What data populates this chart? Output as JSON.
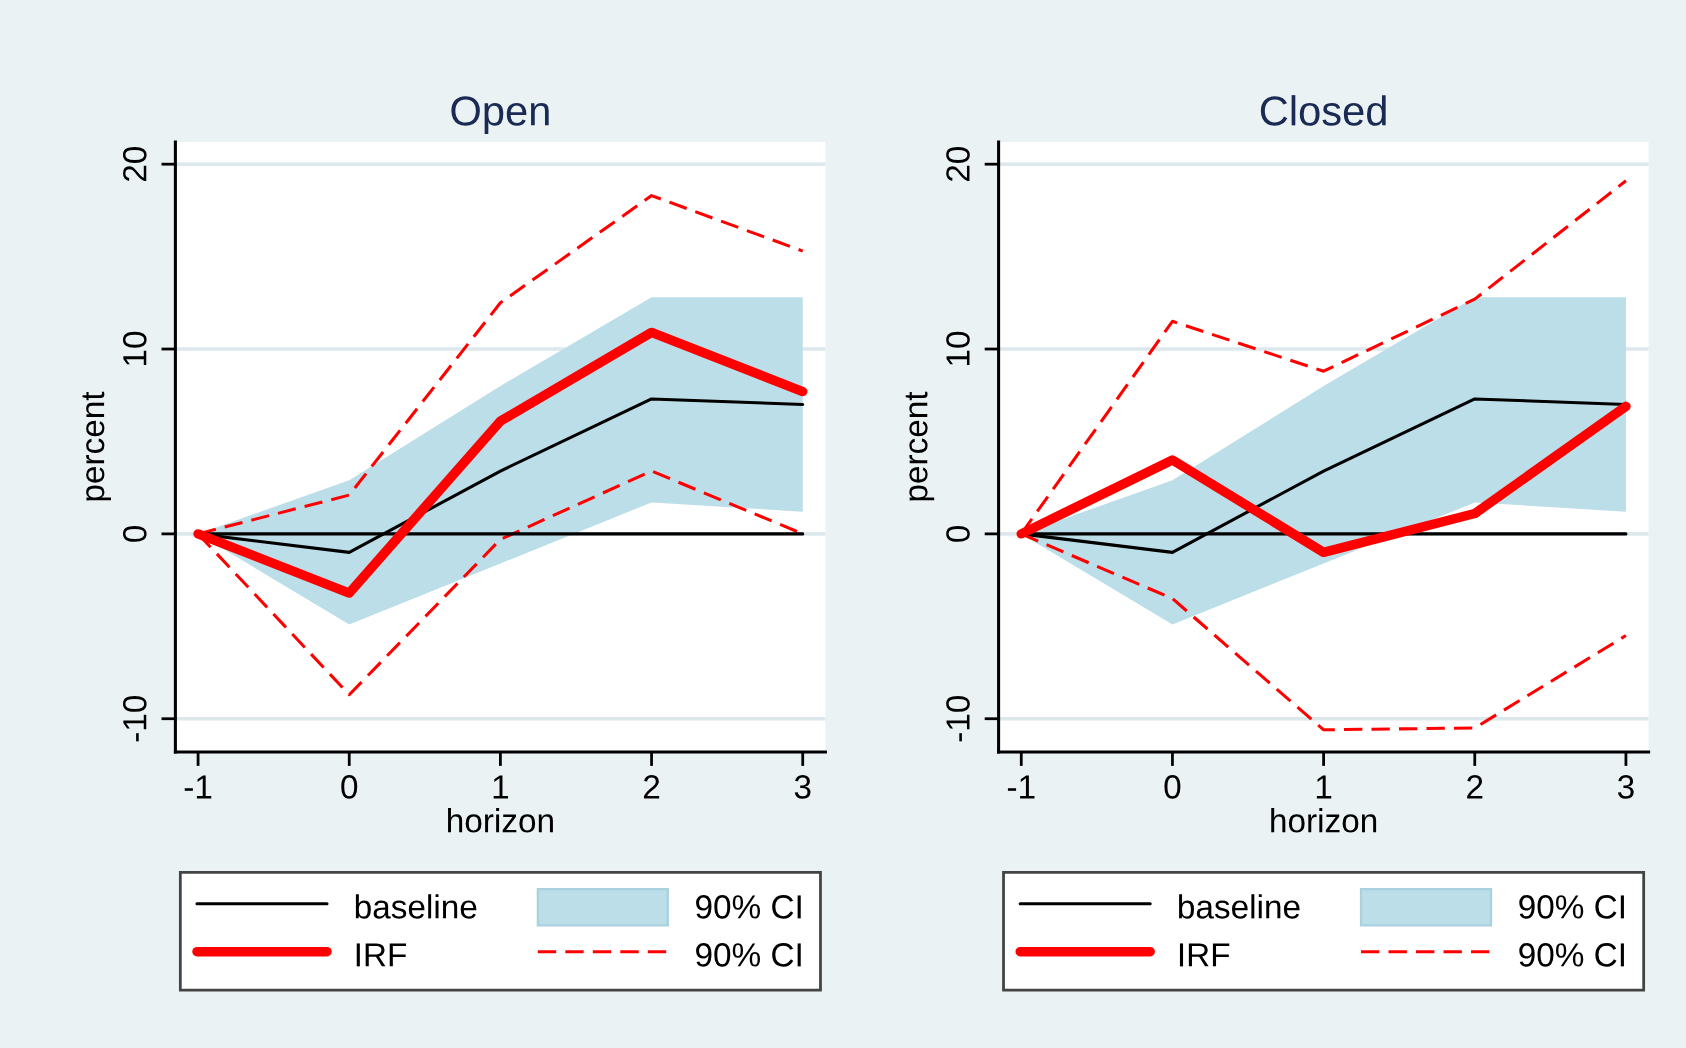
{
  "chart_data": [
    {
      "type": "line",
      "title": "Open",
      "xlabel": "horizon",
      "ylabel": "percent",
      "x": [
        -1,
        0,
        1,
        2,
        3
      ],
      "xlim": [
        -1.15,
        3.15
      ],
      "xticks": [
        -1,
        0,
        1,
        2,
        3
      ],
      "ylim": [
        -11.8,
        21.2
      ],
      "yticks": [
        -10,
        0,
        10,
        20
      ],
      "grid": "y",
      "legend": "bottom",
      "marker": "none",
      "series": [
        {
          "name": "baseline",
          "color": "#000000",
          "values": [
            0,
            -1.0,
            3.4,
            7.3,
            7.0
          ]
        },
        {
          "name": "90% CI",
          "color": "#bcdee8",
          "values": [
            null,
            null,
            null,
            null,
            null
          ],
          "lower": [
            0,
            -4.9,
            -1.6,
            1.7,
            1.2
          ],
          "upper": [
            0,
            2.9,
            8.0,
            12.8,
            12.8
          ]
        },
        {
          "name": "IRF",
          "color": "#ff0000",
          "values": [
            0,
            -3.2,
            6.1,
            10.9,
            7.7
          ]
        },
        {
          "name": "90% CI",
          "color": "#ff0000",
          "line_style": "dashed",
          "values": [
            0,
            2.1,
            12.5,
            18.3,
            15.3
          ]
        },
        {
          "color": "#ff0000",
          "line_style": "dashed",
          "values": [
            0,
            -8.7,
            -0.3,
            3.4,
            0.0
          ]
        },
        {
          "color": "#000000",
          "values": [
            0,
            0,
            0,
            0,
            0
          ]
        }
      ]
    },
    {
      "type": "line",
      "title": "Closed",
      "xlabel": "horizon",
      "ylabel": "percent",
      "x": [
        -1,
        0,
        1,
        2,
        3
      ],
      "xlim": [
        -1.15,
        3.15
      ],
      "xticks": [
        -1,
        0,
        1,
        2,
        3
      ],
      "ylim": [
        -11.8,
        21.2
      ],
      "yticks": [
        -10,
        0,
        10,
        20
      ],
      "grid": "y",
      "legend": "bottom",
      "marker": "none",
      "series": [
        {
          "name": "baseline",
          "color": "#000000",
          "values": [
            0,
            -1.0,
            3.4,
            7.3,
            7.0
          ]
        },
        {
          "name": "90% CI",
          "color": "#bcdee8",
          "values": [
            null,
            null,
            null,
            null,
            null
          ],
          "lower": [
            0,
            -4.9,
            -1.6,
            1.7,
            1.2
          ],
          "upper": [
            0,
            2.9,
            8.0,
            12.8,
            12.8
          ]
        },
        {
          "name": "IRF",
          "color": "#ff0000",
          "values": [
            0,
            4.0,
            -1.0,
            1.1,
            6.9
          ]
        },
        {
          "name": "90% CI",
          "color": "#ff0000",
          "line_style": "dashed",
          "values": [
            0,
            11.5,
            8.8,
            12.7,
            19.1
          ]
        },
        {
          "color": "#ff0000",
          "line_style": "dashed",
          "values": [
            0,
            -3.5,
            -10.6,
            -10.5,
            -5.5
          ]
        },
        {
          "color": "#000000",
          "values": [
            0,
            0,
            0,
            0,
            0
          ]
        }
      ]
    }
  ]
}
